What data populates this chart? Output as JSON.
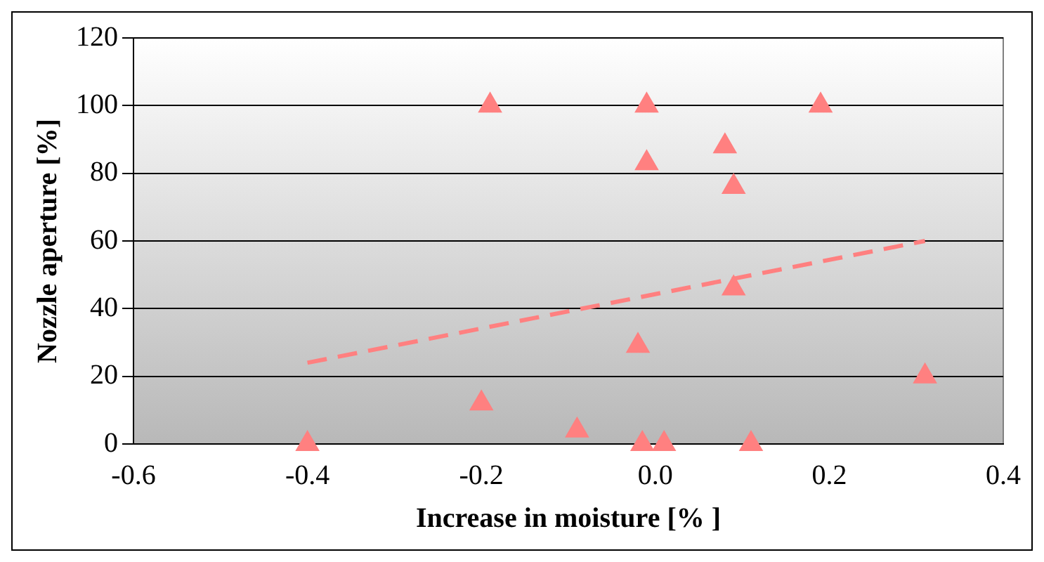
{
  "chart_data": {
    "type": "scatter",
    "xlabel": "Increase in moisture [% ]",
    "ylabel": "Nozzle aperture [%]",
    "xlim": [
      -0.6,
      0.4
    ],
    "xticks": [
      -0.6,
      -0.4,
      -0.2,
      {
        "value": 0,
        "label": "0.0"
      },
      0.2,
      0.4
    ],
    "ylim": [
      0,
      120
    ],
    "yticks": [
      0,
      20,
      40,
      60,
      80,
      100,
      120
    ],
    "grid": "y",
    "marker": "triangle",
    "legend": false,
    "series": [
      {
        "color": "#ff8080",
        "x": [
          -0.4,
          -0.19,
          -0.2,
          -0.09,
          -0.02,
          -0.015,
          0.01,
          -0.01,
          -0.01,
          0.08,
          0.09,
          0.09,
          0.11,
          0.19,
          0.31
        ],
        "values": [
          0,
          100,
          12,
          4,
          29,
          0,
          0,
          100,
          83,
          88,
          76,
          46,
          0,
          100,
          20
        ]
      },
      {
        "type": "line",
        "color": "#ff8080",
        "line_style": "dashed",
        "marker": "none",
        "x": [
          -0.4,
          0.31
        ],
        "values": [
          24,
          60
        ]
      }
    ]
  }
}
